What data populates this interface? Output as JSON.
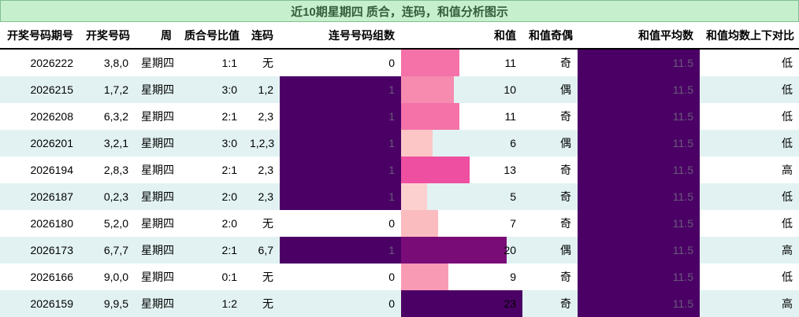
{
  "title": "近10期星期四 质合，连码，和值分析图示",
  "headers": [
    "开奖号码期号",
    "开奖号码",
    "周",
    "质合号比值",
    "连码",
    "连号号码组数",
    "和值",
    "和值奇偶",
    "和值平均数",
    "和值均数上下对比"
  ],
  "colors": {
    "title_bg": "#c6efce",
    "title_text": "#355e3b",
    "alt_row": "#e2f2f2",
    "dark_fill": "#4b0066"
  },
  "sum_max": 23,
  "rows": [
    {
      "period": "2026222",
      "numbers": "3,8,0",
      "week": "星期四",
      "ratio": "1:1",
      "consec": "无",
      "groups": "0",
      "sum": "11",
      "parity": "奇",
      "avg": "11.5",
      "compare": "低",
      "groups_dark": false,
      "sum_color": "#f472a8"
    },
    {
      "period": "2026215",
      "numbers": "1,7,2",
      "week": "星期四",
      "ratio": "3:0",
      "consec": "1,2",
      "groups": "1",
      "sum": "10",
      "parity": "偶",
      "avg": "11.5",
      "compare": "低",
      "groups_dark": true,
      "sum_color": "#f78aaf"
    },
    {
      "period": "2026208",
      "numbers": "6,3,2",
      "week": "星期四",
      "ratio": "2:1",
      "consec": "2,3",
      "groups": "1",
      "sum": "11",
      "parity": "奇",
      "avg": "11.5",
      "compare": "低",
      "groups_dark": true,
      "sum_color": "#f472a8"
    },
    {
      "period": "2026201",
      "numbers": "3,2,1",
      "week": "星期四",
      "ratio": "3:0",
      "consec": "1,2,3",
      "groups": "1",
      "sum": "6",
      "parity": "偶",
      "avg": "11.5",
      "compare": "低",
      "groups_dark": true,
      "sum_color": "#fcc6c6"
    },
    {
      "period": "2026194",
      "numbers": "2,8,3",
      "week": "星期四",
      "ratio": "2:1",
      "consec": "2,3",
      "groups": "1",
      "sum": "13",
      "parity": "奇",
      "avg": "11.5",
      "compare": "高",
      "groups_dark": true,
      "sum_color": "#ee4fa0"
    },
    {
      "period": "2026187",
      "numbers": "0,2,3",
      "week": "星期四",
      "ratio": "2:0",
      "consec": "2,3",
      "groups": "1",
      "sum": "5",
      "parity": "奇",
      "avg": "11.5",
      "compare": "低",
      "groups_dark": true,
      "sum_color": "#fdd0d0"
    },
    {
      "period": "2026180",
      "numbers": "5,2,0",
      "week": "星期四",
      "ratio": "2:0",
      "consec": "无",
      "groups": "0",
      "sum": "7",
      "parity": "奇",
      "avg": "11.5",
      "compare": "低",
      "groups_dark": false,
      "sum_color": "#fbbcc0"
    },
    {
      "period": "2026173",
      "numbers": "6,7,7",
      "week": "星期四",
      "ratio": "2:1",
      "consec": "6,7",
      "groups": "1",
      "sum": "20",
      "parity": "偶",
      "avg": "11.5",
      "compare": "高",
      "groups_dark": true,
      "sum_color": "#7a0c78"
    },
    {
      "period": "2026166",
      "numbers": "9,0,0",
      "week": "星期四",
      "ratio": "0:1",
      "consec": "无",
      "groups": "0",
      "sum": "9",
      "parity": "奇",
      "avg": "11.5",
      "compare": "低",
      "groups_dark": false,
      "sum_color": "#f99ab5"
    },
    {
      "period": "2026159",
      "numbers": "9,9,5",
      "week": "星期四",
      "ratio": "1:2",
      "consec": "无",
      "groups": "0",
      "sum": "23",
      "parity": "奇",
      "avg": "11.5",
      "compare": "高",
      "groups_dark": false,
      "sum_color": "#4b0066"
    }
  ]
}
